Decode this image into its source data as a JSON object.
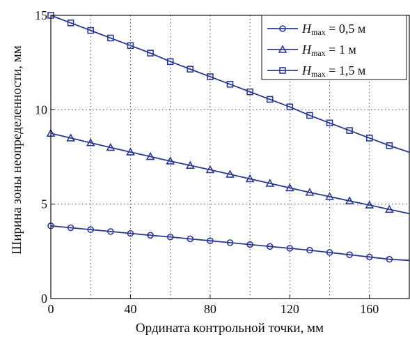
{
  "chart_data": {
    "type": "line",
    "xlabel": "Ордината контрольной точки, мм",
    "ylabel": "Ширина зоны неопределенности, мм",
    "xlim": [
      0,
      180
    ],
    "ylim": [
      0,
      15
    ],
    "x_ticks": [
      "0",
      "40",
      "80",
      "120",
      "160"
    ],
    "y_ticks": [
      "0",
      "5",
      "10",
      "15"
    ],
    "grid": true,
    "legend_position": "top-right",
    "line_color": "#2b3990",
    "marker_x": [
      0,
      10,
      20,
      30,
      40,
      50,
      60,
      70,
      80,
      90,
      100,
      110,
      120,
      130,
      140,
      150,
      160,
      170
    ],
    "series": [
      {
        "legend_var": "H",
        "legend_sub": "max",
        "legend_value": " = 0,5 м",
        "marker": "circle",
        "line_end": [
          180,
          2.02
        ],
        "values": [
          3.85,
          3.75,
          3.65,
          3.55,
          3.45,
          3.35,
          3.26,
          3.16,
          3.06,
          2.96,
          2.86,
          2.76,
          2.66,
          2.56,
          2.44,
          2.32,
          2.2,
          2.08
        ]
      },
      {
        "legend_var": "H",
        "legend_sub": "max",
        "legend_value": " = 1 м",
        "marker": "triangle",
        "line_end": [
          180,
          4.5
        ],
        "values": [
          8.75,
          8.5,
          8.25,
          8.0,
          7.76,
          7.52,
          7.28,
          7.05,
          6.82,
          6.58,
          6.34,
          6.1,
          5.86,
          5.62,
          5.4,
          5.17,
          4.95,
          4.72
        ]
      },
      {
        "legend_var": "H",
        "legend_sub": "max",
        "legend_value": " = 1,5 м",
        "marker": "square",
        "line_end": [
          180,
          7.75
        ],
        "values": [
          15.0,
          14.6,
          14.2,
          13.8,
          13.4,
          13.0,
          12.55,
          12.15,
          11.75,
          11.35,
          10.95,
          10.55,
          10.15,
          9.7,
          9.3,
          8.9,
          8.5,
          8.1
        ]
      }
    ]
  }
}
